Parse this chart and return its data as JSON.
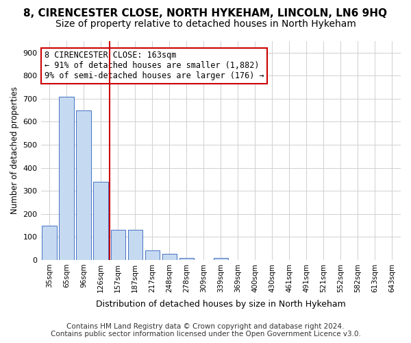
{
  "title": "8, CIRENCESTER CLOSE, NORTH HYKEHAM, LINCOLN, LN6 9HQ",
  "subtitle": "Size of property relative to detached houses in North Hykeham",
  "xlabel": "Distribution of detached houses by size in North Hykeham",
  "ylabel": "Number of detached properties",
  "footer_line1": "Contains HM Land Registry data © Crown copyright and database right 2024.",
  "footer_line2": "Contains public sector information licensed under the Open Government Licence v3.0.",
  "categories": [
    "35sqm",
    "65sqm",
    "96sqm",
    "126sqm",
    "157sqm",
    "187sqm",
    "217sqm",
    "248sqm",
    "278sqm",
    "309sqm",
    "339sqm",
    "369sqm",
    "400sqm",
    "430sqm",
    "461sqm",
    "491sqm",
    "521sqm",
    "552sqm",
    "582sqm",
    "613sqm",
    "643sqm"
  ],
  "values": [
    150,
    710,
    650,
    340,
    130,
    130,
    40,
    27,
    10,
    0,
    10,
    0,
    0,
    0,
    0,
    0,
    0,
    0,
    0,
    0,
    0
  ],
  "bar_color": "#c5d9f1",
  "bar_edge_color": "#4472c4",
  "grid_color": "#d0d0d0",
  "vline_color": "#cc0000",
  "annotation_text": "8 CIRENCESTER CLOSE: 163sqm\n← 91% of detached houses are smaller (1,882)\n9% of semi-detached houses are larger (176) →",
  "annotation_box_color": "#ffffff",
  "annotation_box_edge": "#cc0000",
  "ylim": [
    0,
    950
  ],
  "yticks": [
    0,
    100,
    200,
    300,
    400,
    500,
    600,
    700,
    800,
    900
  ],
  "title_fontsize": 11,
  "subtitle_fontsize": 10,
  "annotation_fontsize": 8.5,
  "footer_fontsize": 7.5
}
